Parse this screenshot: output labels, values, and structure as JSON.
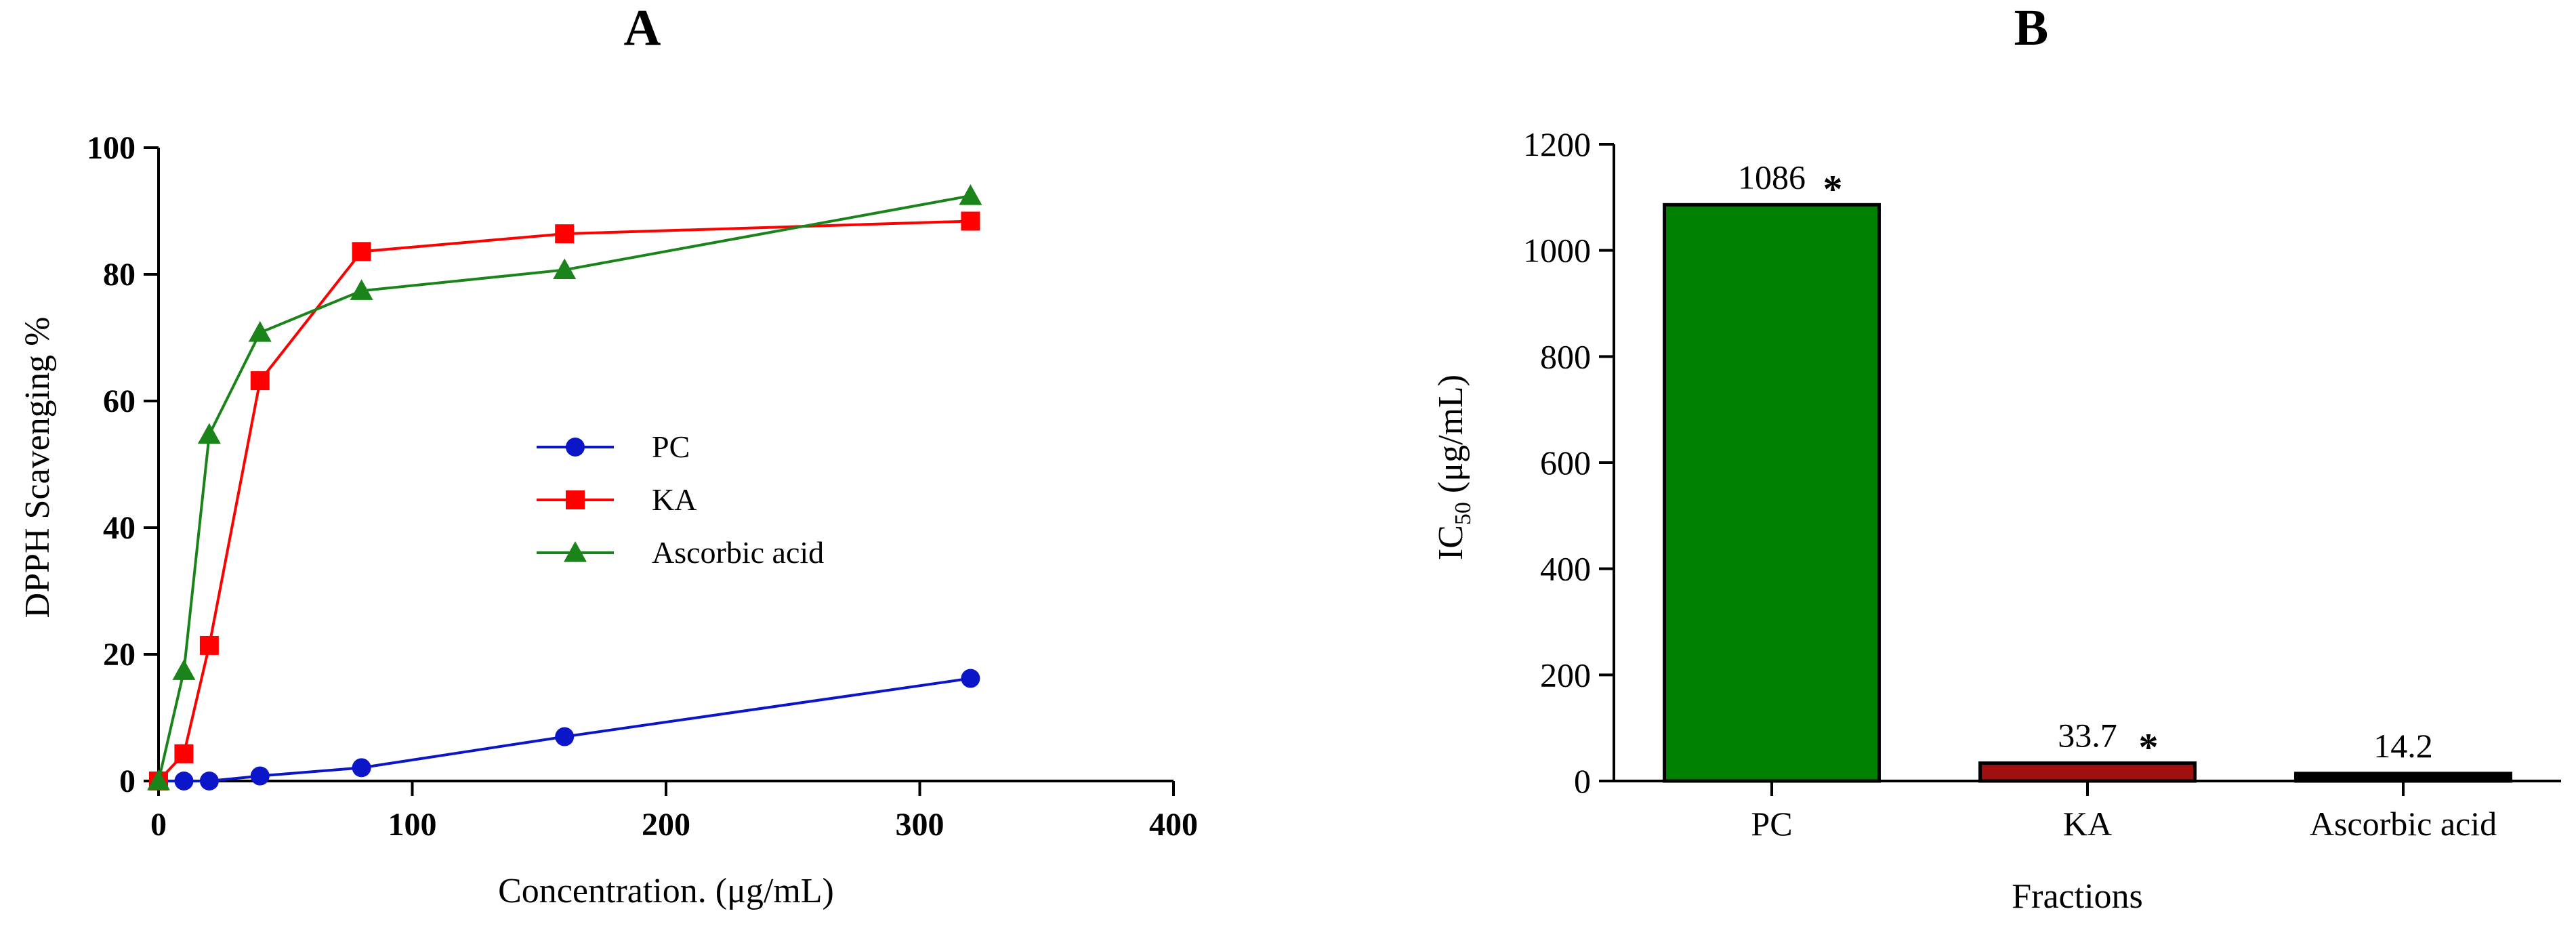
{
  "panels": [
    {
      "title": "A",
      "xlabel": "Concentration. (μg/mL)",
      "ylabel": "DPPH Scavenging %"
    },
    {
      "title": "B",
      "xlabel": "Fractions",
      "ylabel_main": "IC",
      "ylabel_sub": "50",
      "ylabel_rest": " (μg/mL)"
    }
  ],
  "chart_data": [
    {
      "type": "line",
      "title": "A",
      "xlabel": "Concentration. (μg/mL)",
      "ylabel": "DPPH Scavenging %",
      "xlim": [
        0,
        400
      ],
      "ylim": [
        0,
        100
      ],
      "xticks": [
        "0",
        "100",
        "200",
        "300",
        "400"
      ],
      "yticks": [
        "0",
        "20",
        "40",
        "60",
        "80",
        "100"
      ],
      "legend_position": "center",
      "grid": false,
      "series": [
        {
          "name": "PC",
          "color": "#0a16c8",
          "marker": "circle",
          "x": [
            0,
            10,
            20,
            40,
            80,
            160,
            320
          ],
          "y": [
            0,
            0,
            0,
            0.8,
            2.1,
            7,
            16.2
          ]
        },
        {
          "name": "KA",
          "color": "#ff0000",
          "marker": "square",
          "x": [
            0,
            10,
            20,
            40,
            80,
            160,
            320
          ],
          "y": [
            0,
            4.3,
            21.4,
            63.2,
            83.6,
            86.4,
            88.4
          ]
        },
        {
          "name": "Ascorbic acid",
          "color": "#1a841a",
          "marker": "triangle",
          "x": [
            0,
            10,
            20,
            40,
            80,
            160,
            320
          ],
          "y": [
            0,
            17.4,
            54.7,
            70.8,
            77.4,
            80.7,
            92.4
          ]
        }
      ]
    },
    {
      "type": "bar",
      "title": "B",
      "xlabel": "Fractions",
      "ylabel": "IC50 (μg/mL)",
      "ylim": [
        0,
        1200
      ],
      "yticks": [
        "0",
        "200",
        "400",
        "600",
        "800",
        "1000",
        "1200"
      ],
      "categories": [
        "PC",
        "KA",
        "Ascorbic acid"
      ],
      "values": [
        1086,
        33.7,
        14.2
      ],
      "value_labels": [
        "1086",
        "33.7",
        "14.2"
      ],
      "significance": [
        "*",
        "*",
        ""
      ],
      "colors": [
        "#008000",
        "#a01010",
        "#000000"
      ],
      "grid": false
    }
  ]
}
